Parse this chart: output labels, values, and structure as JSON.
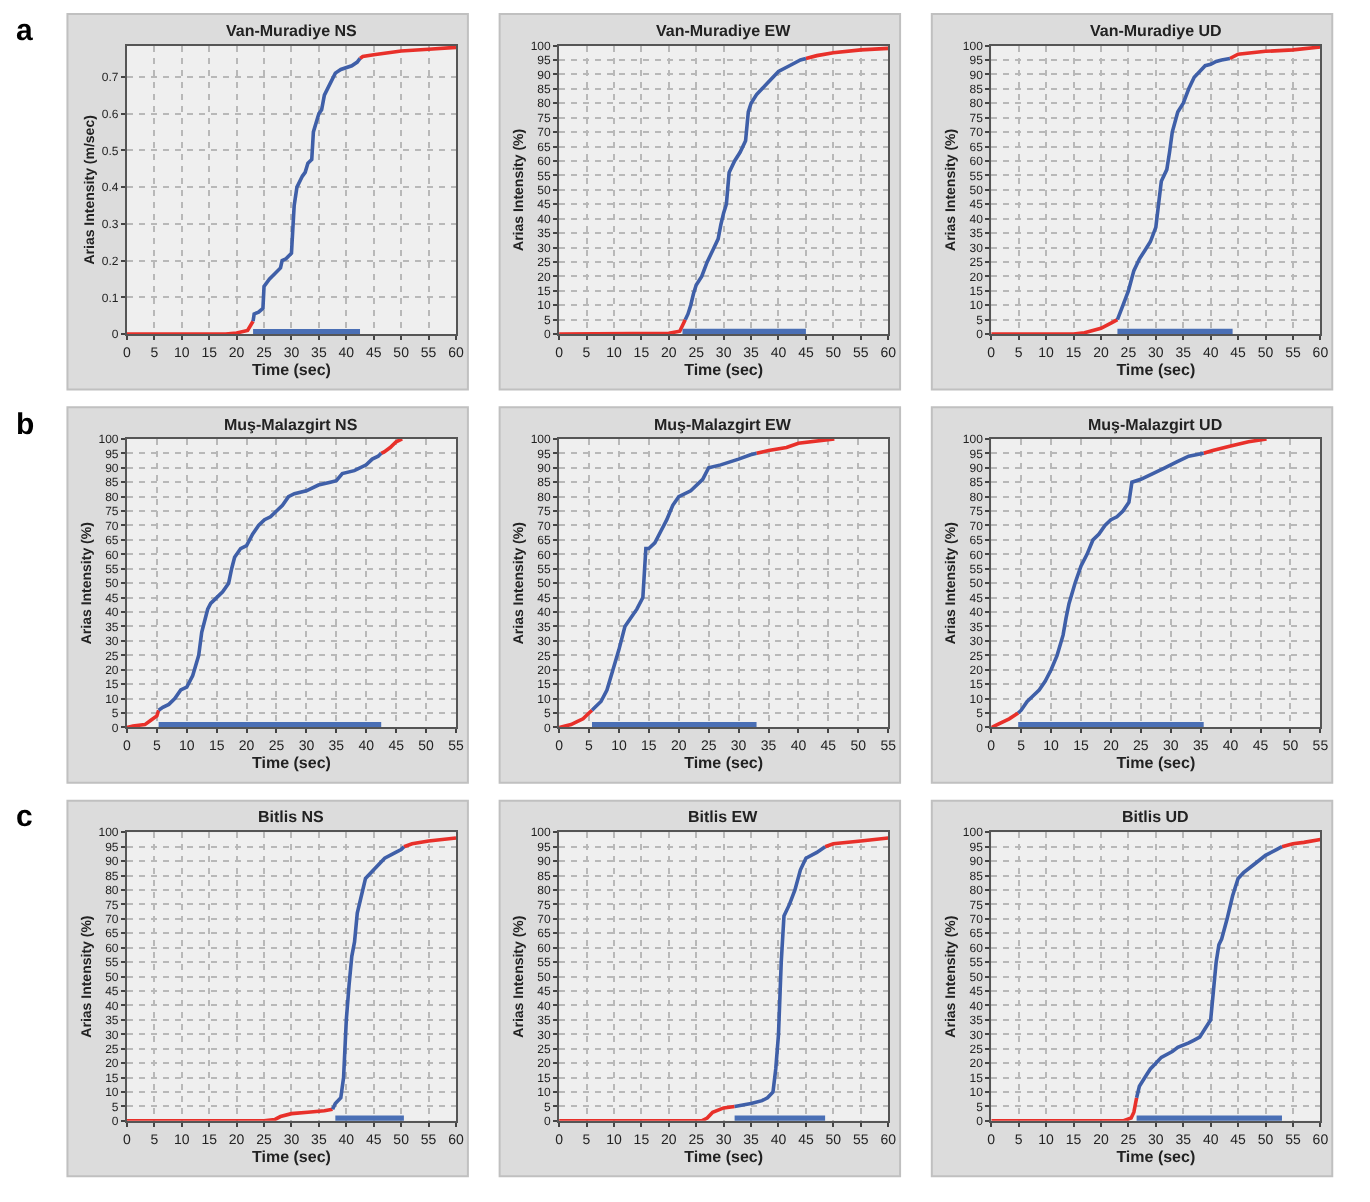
{
  "chart_data": [
    {
      "type": "line",
      "title": "Van-Muradiye NS",
      "xlabel": "Time (sec)",
      "ylabel": "Arias Intensity (m/sec)",
      "annotations": [
        "a"
      ],
      "xlim": [
        0,
        60
      ],
      "xticks": [
        0,
        5,
        10,
        15,
        20,
        25,
        30,
        35,
        40,
        45,
        50,
        55,
        60
      ],
      "ylim": [
        0,
        0.785
      ],
      "yticks": [
        0,
        0.1,
        0.2,
        0.3,
        0.4,
        0.5,
        0.6,
        0.7
      ],
      "grid": true,
      "series": [
        {
          "color": "#e8302a",
          "x": [
            0,
            18,
            20,
            22,
            23
          ],
          "values": [
            0,
            0,
            0.003,
            0.01,
            0.035
          ]
        },
        {
          "color": "#e8302a",
          "x": [
            42.5,
            43,
            45,
            50,
            55,
            60
          ],
          "values": [
            0.75,
            0.755,
            0.76,
            0.77,
            0.775,
            0.78
          ]
        },
        {
          "color": "#3f5fa8",
          "x": [
            23,
            23.2,
            24,
            24.8,
            25,
            26,
            27,
            28,
            28.3,
            29,
            30,
            30.3,
            30.5,
            31,
            32,
            32.5,
            33,
            33.7,
            34,
            35,
            35.5,
            36,
            37,
            38,
            39,
            41,
            42,
            42.5
          ],
          "values": [
            0.035,
            0.055,
            0.06,
            0.07,
            0.13,
            0.15,
            0.165,
            0.18,
            0.2,
            0.205,
            0.22,
            0.3,
            0.35,
            0.4,
            0.43,
            0.44,
            0.465,
            0.475,
            0.55,
            0.6,
            0.61,
            0.65,
            0.68,
            0.71,
            0.72,
            0.73,
            0.74,
            0.75
          ]
        },
        {
          "color": "#4a6fb5",
          "x": [
            23,
            42.5
          ],
          "values": [
            0.003,
            0.003
          ]
        }
      ]
    },
    {
      "type": "line",
      "title": "Van-Muradiye EW",
      "xlabel": "Time (sec)",
      "ylabel": "Arias Intensity (%)",
      "xlim": [
        0,
        60
      ],
      "xticks": [
        0,
        5,
        10,
        15,
        20,
        25,
        30,
        35,
        40,
        45,
        50,
        55,
        60
      ],
      "ylim": [
        0,
        100
      ],
      "yticks": [
        0,
        5,
        10,
        15,
        20,
        25,
        30,
        35,
        40,
        45,
        50,
        55,
        60,
        65,
        70,
        75,
        80,
        85,
        90,
        95,
        100
      ],
      "grid": true,
      "series": [
        {
          "color": "#e8302a",
          "x": [
            0,
            20,
            22,
            22.5,
            23
          ],
          "values": [
            0,
            0.3,
            1,
            3,
            5
          ]
        },
        {
          "color": "#e8302a",
          "x": [
            45,
            47,
            50,
            55,
            60
          ],
          "values": [
            95.5,
            96.5,
            97.5,
            98.5,
            99
          ]
        },
        {
          "color": "#3f5fa8",
          "x": [
            23,
            23.5,
            24,
            24.5,
            25,
            26,
            27,
            28,
            29,
            29.5,
            30,
            30.5,
            31,
            32,
            33,
            34,
            34.5,
            35,
            36,
            37,
            38,
            40,
            42,
            44,
            45
          ],
          "values": [
            5,
            7,
            10,
            14,
            17,
            20,
            25,
            29,
            33,
            38,
            42,
            45,
            56,
            60,
            63,
            67,
            77,
            80,
            83,
            85,
            87,
            91,
            93,
            95,
            95.5
          ]
        },
        {
          "color": "#4a6fb5",
          "x": [
            22.5,
            45
          ],
          "values": [
            0.5,
            0.5
          ]
        }
      ]
    },
    {
      "type": "line",
      "title": "Van-Muradiye UD",
      "xlabel": "Time (sec)",
      "ylabel": "Arias Intensity (%)",
      "xlim": [
        0,
        60
      ],
      "xticks": [
        0,
        5,
        10,
        15,
        20,
        25,
        30,
        35,
        40,
        45,
        50,
        55,
        60
      ],
      "ylim": [
        0,
        100
      ],
      "yticks": [
        0,
        5,
        10,
        15,
        20,
        25,
        30,
        35,
        40,
        45,
        50,
        55,
        60,
        65,
        70,
        75,
        80,
        85,
        90,
        95,
        100
      ],
      "grid": true,
      "series": [
        {
          "color": "#e8302a",
          "x": [
            0,
            15,
            17,
            20,
            22,
            23
          ],
          "values": [
            0,
            0,
            0.5,
            2,
            4,
            5
          ]
        },
        {
          "color": "#e8302a",
          "x": [
            43.5,
            45,
            50,
            55,
            60
          ],
          "values": [
            95.5,
            97,
            98,
            98.5,
            99.5
          ]
        },
        {
          "color": "#3f5fa8",
          "x": [
            23,
            24,
            25,
            26,
            27,
            28,
            29,
            30,
            30.5,
            31,
            32,
            32.5,
            33,
            34,
            35,
            36,
            37,
            38,
            39,
            40,
            41,
            42,
            43.5
          ],
          "values": [
            5,
            10,
            15,
            22,
            26,
            29,
            32,
            37,
            45,
            53,
            57,
            63,
            70,
            77,
            80,
            85,
            89,
            91,
            93,
            93.5,
            94.5,
            95,
            95.5
          ]
        },
        {
          "color": "#4a6fb5",
          "x": [
            23,
            44
          ],
          "values": [
            0.5,
            0.5
          ]
        }
      ]
    },
    {
      "type": "line",
      "title": "Muş-Malazgirt NS",
      "xlabel": "Time (sec)",
      "ylabel": "Arias Intensity (%)",
      "annotations": [
        "b"
      ],
      "xlim": [
        0,
        55
      ],
      "xticks": [
        0,
        5,
        10,
        15,
        20,
        25,
        30,
        35,
        40,
        45,
        50,
        55
      ],
      "ylim": [
        0,
        100
      ],
      "yticks": [
        0,
        5,
        10,
        15,
        20,
        25,
        30,
        35,
        40,
        45,
        50,
        55,
        60,
        65,
        70,
        75,
        80,
        85,
        90,
        95,
        100
      ],
      "grid": true,
      "series": [
        {
          "color": "#e8302a",
          "x": [
            0,
            1,
            3,
            4,
            5,
            5.3
          ],
          "values": [
            0,
            0.5,
            1,
            2.5,
            4,
            6
          ]
        },
        {
          "color": "#e8302a",
          "x": [
            42.5,
            43,
            44,
            45,
            46
          ],
          "values": [
            95,
            95.5,
            97,
            99,
            100
          ]
        },
        {
          "color": "#3f5fa8",
          "x": [
            5.3,
            6,
            7,
            8,
            9,
            10,
            11,
            12,
            12.5,
            13,
            13.5,
            14,
            15,
            16,
            17,
            17.5,
            18,
            19,
            20,
            21,
            22,
            23,
            24,
            25,
            26,
            27,
            28,
            30,
            32,
            34,
            35,
            36,
            38,
            40,
            41,
            42,
            42.5
          ],
          "values": [
            6,
            7,
            8,
            10,
            13,
            14,
            18,
            25,
            33,
            37,
            41,
            43,
            45,
            47,
            50,
            55,
            59,
            62,
            63,
            67,
            70,
            72,
            73,
            75,
            77,
            80,
            81,
            82,
            84,
            85,
            85.5,
            88,
            89,
            91,
            93,
            94,
            95
          ]
        },
        {
          "color": "#4a6fb5",
          "x": [
            5.3,
            42.5
          ],
          "values": [
            0.5,
            0.5
          ]
        }
      ]
    },
    {
      "type": "line",
      "title": "Muş-Malazgirt EW",
      "xlabel": "Time (sec)",
      "ylabel": "Arias Intensity (%)",
      "xlim": [
        0,
        55
      ],
      "xticks": [
        0,
        5,
        10,
        15,
        20,
        25,
        30,
        35,
        40,
        45,
        50,
        55
      ],
      "ylim": [
        0,
        100
      ],
      "yticks": [
        0,
        5,
        10,
        15,
        20,
        25,
        30,
        35,
        40,
        45,
        50,
        55,
        60,
        65,
        70,
        75,
        80,
        85,
        90,
        95,
        100
      ],
      "grid": true,
      "series": [
        {
          "color": "#e8302a",
          "x": [
            0,
            1,
            2,
            3,
            4,
            5,
            5.5
          ],
          "values": [
            0,
            0.5,
            1,
            2,
            3,
            5,
            6
          ]
        },
        {
          "color": "#e8302a",
          "x": [
            33,
            35,
            38,
            40,
            46
          ],
          "values": [
            95,
            96,
            97,
            98.5,
            100
          ]
        },
        {
          "color": "#3f5fa8",
          "x": [
            5.5,
            6,
            7,
            8,
            9,
            10,
            11,
            12,
            13,
            14,
            14.5,
            15,
            16,
            17,
            18,
            19,
            20,
            22,
            24,
            25,
            27,
            30,
            32,
            33
          ],
          "values": [
            6,
            7,
            9,
            13,
            20,
            27,
            35,
            38,
            41,
            45,
            62,
            62,
            64,
            68,
            72,
            77,
            80,
            82,
            86,
            90,
            91,
            93,
            94.5,
            95
          ]
        },
        {
          "color": "#4a6fb5",
          "x": [
            5.5,
            33
          ],
          "values": [
            0.5,
            0.5
          ]
        }
      ]
    },
    {
      "type": "line",
      "title": "Muş-Malazgirt UD",
      "xlabel": "Time (sec)",
      "ylabel": "Arias Intensity (%)",
      "xlim": [
        0,
        55
      ],
      "xticks": [
        0,
        5,
        10,
        15,
        20,
        25,
        30,
        35,
        40,
        45,
        50,
        55
      ],
      "ylim": [
        0,
        100
      ],
      "yticks": [
        0,
        5,
        10,
        15,
        20,
        25,
        30,
        35,
        40,
        45,
        50,
        55,
        60,
        65,
        70,
        75,
        80,
        85,
        90,
        95,
        100
      ],
      "grid": true,
      "series": [
        {
          "color": "#e8302a",
          "x": [
            0,
            1,
            3,
            4.5
          ],
          "values": [
            0,
            1,
            3,
            5
          ]
        },
        {
          "color": "#e8302a",
          "x": [
            35.5,
            37,
            40,
            43,
            46
          ],
          "values": [
            95,
            96,
            97.5,
            99,
            100
          ]
        },
        {
          "color": "#3f5fa8",
          "x": [
            4.5,
            5,
            6,
            7,
            8,
            9,
            10,
            11,
            12,
            12.5,
            13,
            14,
            15,
            16,
            17,
            18,
            19,
            20,
            21,
            22,
            23,
            23.5,
            25,
            27,
            29,
            31,
            33,
            35.5
          ],
          "values": [
            5,
            6,
            9,
            11,
            13,
            16,
            20,
            25,
            32,
            38,
            43,
            50,
            56,
            60,
            65,
            67,
            70,
            72,
            73,
            75,
            78,
            85,
            86,
            88,
            90,
            92,
            94,
            95
          ]
        },
        {
          "color": "#4a6fb5",
          "x": [
            4.5,
            35.5
          ],
          "values": [
            0.5,
            0.5
          ]
        }
      ]
    },
    {
      "type": "line",
      "title": "Bitlis NS",
      "xlabel": "Time (sec)",
      "ylabel": "Arias Intensity (%)",
      "annotations": [
        "c"
      ],
      "xlim": [
        0,
        60
      ],
      "xticks": [
        0,
        5,
        10,
        15,
        20,
        25,
        30,
        35,
        40,
        45,
        50,
        55,
        60
      ],
      "ylim": [
        0,
        100
      ],
      "yticks": [
        0,
        5,
        10,
        15,
        20,
        25,
        30,
        35,
        40,
        45,
        50,
        55,
        60,
        65,
        70,
        75,
        80,
        85,
        90,
        95,
        100
      ],
      "grid": true,
      "series": [
        {
          "color": "#e8302a",
          "x": [
            0,
            25,
            27,
            28,
            30,
            33,
            36,
            37.5
          ],
          "values": [
            0,
            0,
            0.5,
            1.5,
            2.5,
            3,
            3.5,
            4
          ]
        },
        {
          "color": "#e8302a",
          "x": [
            50.5,
            52,
            55,
            60
          ],
          "values": [
            95,
            96,
            97,
            98
          ]
        },
        {
          "color": "#3f5fa8",
          "x": [
            37.5,
            38,
            39,
            39.5,
            40,
            40.5,
            41,
            41.5,
            42,
            43,
            43.5,
            45,
            47,
            49,
            50,
            50.5
          ],
          "values": [
            4,
            6,
            8,
            15,
            35,
            47,
            57,
            62,
            72,
            80,
            84,
            87,
            91,
            93,
            94,
            95
          ]
        },
        {
          "color": "#4a6fb5",
          "x": [
            38,
            50.5
          ],
          "values": [
            0.5,
            0.5
          ]
        }
      ]
    },
    {
      "type": "line",
      "title": "Bitlis EW",
      "xlabel": "Time (sec)",
      "ylabel": "Arias Intensity (%)",
      "xlim": [
        0,
        60
      ],
      "xticks": [
        0,
        5,
        10,
        15,
        20,
        25,
        30,
        35,
        40,
        45,
        50,
        55,
        60
      ],
      "ylim": [
        0,
        100
      ],
      "yticks": [
        0,
        5,
        10,
        15,
        20,
        25,
        30,
        35,
        40,
        45,
        50,
        55,
        60,
        65,
        70,
        75,
        80,
        85,
        90,
        95,
        100
      ],
      "grid": true,
      "series": [
        {
          "color": "#e8302a",
          "x": [
            0,
            26,
            27,
            28,
            30,
            32
          ],
          "values": [
            0,
            0,
            1,
            3,
            4.5,
            5
          ]
        },
        {
          "color": "#e8302a",
          "x": [
            48.5,
            50,
            55,
            60
          ],
          "values": [
            95,
            96,
            97,
            98
          ]
        },
        {
          "color": "#3f5fa8",
          "x": [
            32,
            35,
            37,
            38,
            39,
            39.5,
            40,
            40.5,
            41,
            42,
            43,
            44,
            45,
            47,
            48.5
          ],
          "values": [
            5,
            6,
            7,
            8,
            10,
            18,
            30,
            55,
            71,
            75,
            80,
            87,
            91,
            93,
            95
          ]
        },
        {
          "color": "#4a6fb5",
          "x": [
            32,
            48.5
          ],
          "values": [
            0.5,
            0.5
          ]
        }
      ]
    },
    {
      "type": "line",
      "title": "Bitlis UD",
      "xlabel": "Time (sec)",
      "ylabel": "Arias Intensity (%)",
      "xlim": [
        0,
        60
      ],
      "xticks": [
        0,
        5,
        10,
        15,
        20,
        25,
        30,
        35,
        40,
        45,
        50,
        55,
        60
      ],
      "ylim": [
        0,
        100
      ],
      "yticks": [
        0,
        5,
        10,
        15,
        20,
        25,
        30,
        35,
        40,
        45,
        50,
        55,
        60,
        65,
        70,
        75,
        80,
        85,
        90,
        95,
        100
      ],
      "grid": true,
      "series": [
        {
          "color": "#e8302a",
          "x": [
            0,
            24,
            25.5,
            26,
            26.5
          ],
          "values": [
            0,
            0,
            1,
            3,
            8
          ]
        },
        {
          "color": "#e8302a",
          "x": [
            53,
            55,
            57,
            60
          ],
          "values": [
            95,
            96,
            96.5,
            97.5
          ]
        },
        {
          "color": "#3f5fa8",
          "x": [
            26.5,
            27,
            28,
            29,
            30,
            31,
            33,
            34,
            36,
            37,
            38,
            39,
            40,
            40.5,
            41,
            41.5,
            42,
            43,
            44,
            45,
            46,
            48,
            50,
            52,
            53
          ],
          "values": [
            8,
            12,
            15,
            18,
            20,
            22,
            24,
            25.5,
            27,
            28,
            29,
            32,
            35,
            45,
            55,
            61,
            63,
            70,
            78,
            84,
            86,
            89,
            92,
            94,
            95
          ]
        },
        {
          "color": "#4a6fb5",
          "x": [
            26.5,
            53
          ],
          "values": [
            0.5,
            0.5
          ]
        }
      ]
    }
  ]
}
